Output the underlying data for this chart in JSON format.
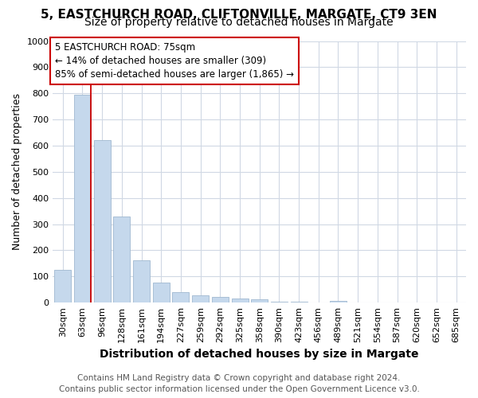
{
  "title1": "5, EASTCHURCH ROAD, CLIFTONVILLE, MARGATE, CT9 3EN",
  "title2": "Size of property relative to detached houses in Margate",
  "xlabel": "Distribution of detached houses by size in Margate",
  "ylabel": "Number of detached properties",
  "categories": [
    "30sqm",
    "63sqm",
    "96sqm",
    "128sqm",
    "161sqm",
    "194sqm",
    "227sqm",
    "259sqm",
    "292sqm",
    "325sqm",
    "358sqm",
    "390sqm",
    "423sqm",
    "456sqm",
    "489sqm",
    "521sqm",
    "554sqm",
    "587sqm",
    "620sqm",
    "652sqm",
    "685sqm"
  ],
  "values": [
    125,
    795,
    620,
    330,
    163,
    78,
    40,
    28,
    22,
    15,
    12,
    5,
    5,
    0,
    7,
    0,
    0,
    0,
    0,
    0,
    0
  ],
  "bar_color": "#c5d8ec",
  "bar_edge_color": "#a0b8d0",
  "red_line_index": 1,
  "annotation_title": "5 EASTCHURCH ROAD: 75sqm",
  "annotation_line1": "← 14% of detached houses are smaller (309)",
  "annotation_line2": "85% of semi-detached houses are larger (1,865) →",
  "annotation_box_facecolor": "#ffffff",
  "annotation_box_edgecolor": "#cc0000",
  "ylim": [
    0,
    1000
  ],
  "yticks": [
    0,
    100,
    200,
    300,
    400,
    500,
    600,
    700,
    800,
    900,
    1000
  ],
  "bg_color": "#ffffff",
  "plot_bg_color": "#ffffff",
  "grid_color": "#d0d8e4",
  "title1_fontsize": 11,
  "title2_fontsize": 10,
  "xlabel_fontsize": 10,
  "ylabel_fontsize": 9,
  "tick_fontsize": 8,
  "annotation_fontsize": 8.5,
  "footer_fontsize": 7.5,
  "footer1": "Contains HM Land Registry data © Crown copyright and database right 2024.",
  "footer2": "Contains public sector information licensed under the Open Government Licence v3.0."
}
